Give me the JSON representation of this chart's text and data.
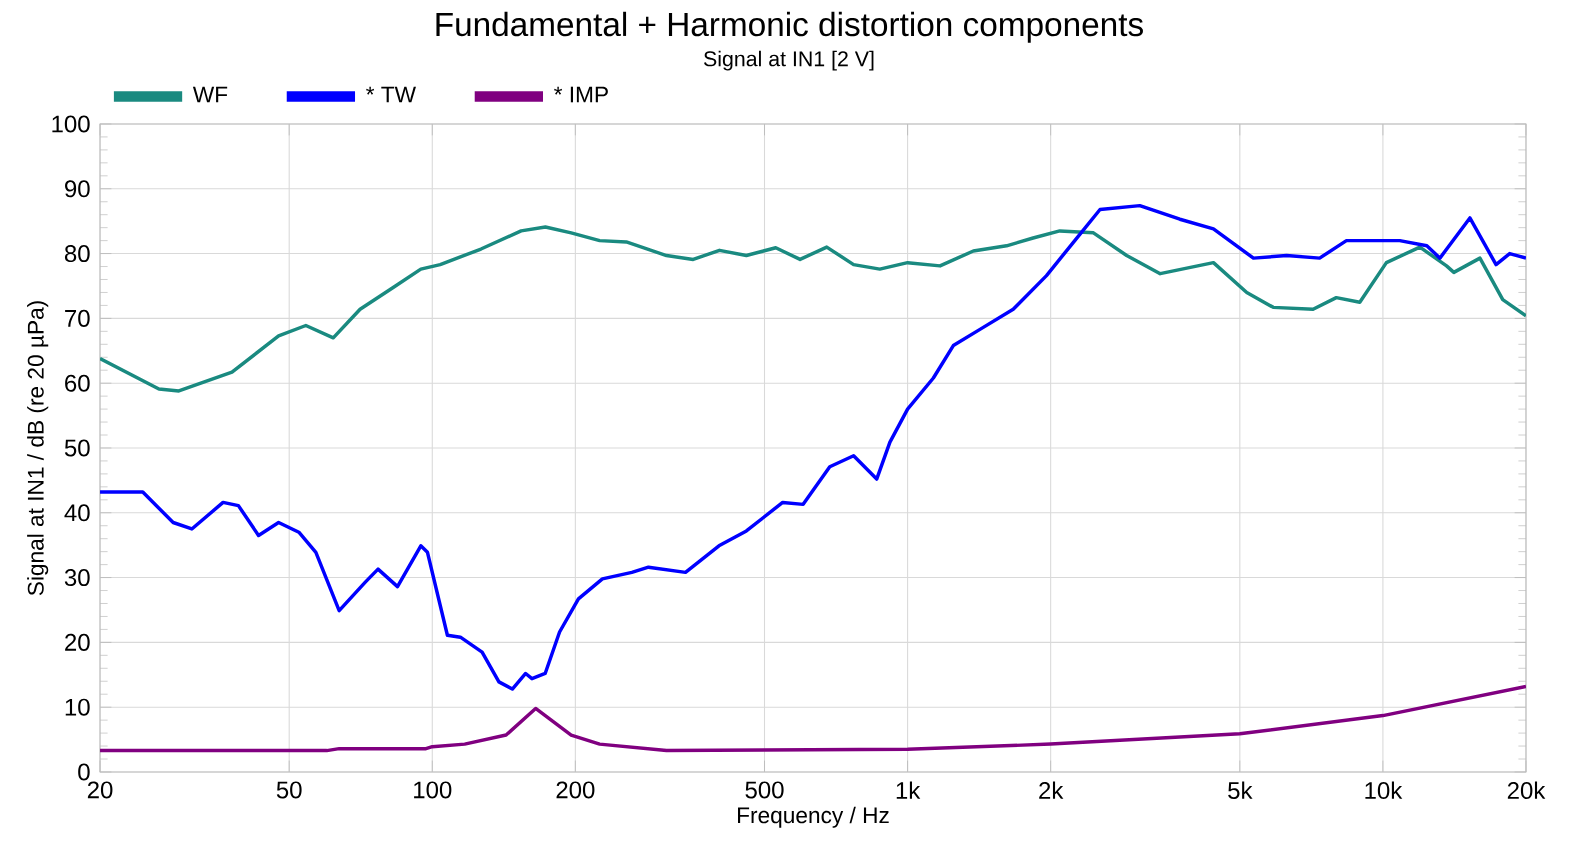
{
  "chart_data": {
    "type": "line",
    "title": "Fundamental + Harmonic distortion components",
    "subtitle": "Signal at IN1 [2 V]",
    "xlabel": "Frequency / Hz",
    "ylabel": "Signal at IN1 / dB (re 20 µPa)",
    "log": "x",
    "grid": true,
    "legend": "top",
    "marker": "none",
    "line_style": "solid",
    "xlim": [
      20,
      20000
    ],
    "ylim": [
      0,
      100
    ],
    "xticks": [
      20,
      50,
      100,
      200,
      500,
      {
        "value": 1000,
        "label": "1k"
      },
      {
        "value": 2000,
        "label": "2k"
      },
      {
        "value": 5000,
        "label": "5k"
      },
      {
        "value": 10000,
        "label": "10k"
      },
      {
        "value": 20000,
        "label": "20k"
      }
    ],
    "yticks": [
      0,
      10,
      20,
      30,
      40,
      50,
      60,
      70,
      80,
      90,
      100
    ],
    "series": [
      {
        "name": "WF",
        "color": "#1a8a80",
        "x": [
          20,
          26.6,
          29.3,
          37.9,
          47.5,
          54.2,
          61.9,
          70.5,
          82.9,
          94.6,
          103.9,
          126.6,
          153.8,
          173,
          196,
          225,
          256,
          311,
          354,
          402,
          458,
          528,
          594,
          676,
          770,
          874,
          1000,
          1170,
          1375,
          1615,
          1837,
          2090,
          2460,
          2890,
          3400,
          4400,
          5170,
          5880,
          7130,
          7980,
          8940,
          10170,
          11960,
          13610,
          14100,
          16000,
          17870,
          20000
        ],
        "values": [
          63.8,
          59.1,
          58.8,
          61.7,
          67.3,
          68.9,
          67.0,
          71.4,
          74.8,
          77.6,
          78.3,
          80.7,
          83.5,
          84.1,
          83.2,
          82.0,
          81.8,
          79.7,
          79.1,
          80.5,
          79.7,
          80.9,
          79.1,
          81.0,
          78.3,
          77.6,
          78.6,
          78.1,
          80.4,
          81.2,
          82.4,
          83.5,
          83.2,
          79.7,
          76.9,
          78.6,
          74.0,
          71.7,
          71.4,
          73.2,
          72.5,
          78.6,
          81.0,
          78.1,
          77.1,
          79.3,
          72.9,
          70.4
        ]
      },
      {
        "name": "* TW",
        "color": "#0000ff",
        "x": [
          20,
          24.6,
          28.5,
          31.2,
          36.3,
          39.1,
          43.1,
          47.5,
          52.4,
          56.9,
          63.7,
          72.3,
          76.9,
          84.5,
          94.6,
          97.7,
          107.6,
          114.6,
          127.3,
          138.1,
          147.4,
          157.2,
          162.1,
          172.8,
          185.3,
          203,
          228,
          263,
          285,
          341,
          401,
          458,
          546,
          603,
          686,
          770,
          861,
          918,
          1000,
          1133,
          1248,
          1420,
          1668,
          1960,
          2230,
          2540,
          3080,
          3740,
          4400,
          5340,
          6270,
          7360,
          8380,
          10850,
          12370,
          13180,
          15240,
          17300,
          18480,
          20000
        ],
        "values": [
          43.2,
          43.2,
          38.5,
          37.5,
          41.6,
          41.1,
          36.5,
          38.5,
          37.0,
          33.9,
          24.9,
          29.3,
          31.3,
          28.6,
          34.9,
          33.9,
          21.1,
          20.8,
          18.5,
          13.9,
          12.8,
          15.2,
          14.4,
          15.2,
          21.6,
          26.7,
          29.8,
          30.8,
          31.6,
          30.8,
          34.9,
          37.2,
          41.6,
          41.3,
          47.1,
          48.8,
          45.2,
          50.9,
          56.0,
          60.8,
          65.8,
          68.3,
          71.4,
          76.6,
          81.7,
          86.8,
          87.4,
          85.3,
          83.8,
          79.3,
          79.7,
          79.3,
          82.0,
          82.0,
          81.2,
          79.3,
          85.5,
          78.3,
          80.0,
          79.3
        ]
      },
      {
        "name": "* IMP",
        "color": "#800080",
        "x": [
          20,
          60,
          63.7,
          97,
          100,
          117,
          143,
          165,
          196,
          225,
          311,
          1000,
          2000,
          5000,
          10000,
          20000
        ],
        "values": [
          3.3,
          3.3,
          3.6,
          3.6,
          3.9,
          4.3,
          5.7,
          9.8,
          5.7,
          4.3,
          3.3,
          3.5,
          4.3,
          5.9,
          8.7,
          13.2
        ]
      }
    ]
  }
}
